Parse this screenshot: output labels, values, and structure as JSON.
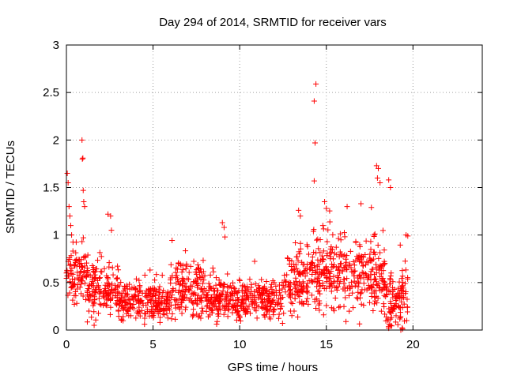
{
  "chart_data": {
    "type": "scatter",
    "title": "Day 294 of 2014, SRMTID for receiver vars",
    "xlabel": "GPS time / hours",
    "ylabel": "SRMTID / TECUs",
    "xlim": [
      0,
      24
    ],
    "ylim": [
      0,
      3
    ],
    "xticks": [
      0,
      5,
      10,
      15,
      20
    ],
    "xtick_labels": [
      "0",
      "5",
      "10",
      "15",
      "20"
    ],
    "yticks": [
      0,
      0.5,
      1,
      1.5,
      2,
      2.5,
      3
    ],
    "ytick_labels": [
      "0",
      "0.5",
      "1",
      "1.5",
      "2",
      "2.5",
      "3"
    ],
    "grid": true,
    "marker": "+",
    "series_color": "#ff0000",
    "series": [
      {
        "name": "SRMTID",
        "segments": [
          {
            "x_start": 0.0,
            "x_end": 0.5,
            "base": 0.55,
            "spread": 0.22
          },
          {
            "x_start": 0.5,
            "x_end": 1.2,
            "base": 0.62,
            "spread": 0.22
          },
          {
            "x_start": 1.2,
            "x_end": 3.0,
            "base": 0.42,
            "spread": 0.2
          },
          {
            "x_start": 3.0,
            "x_end": 6.0,
            "base": 0.3,
            "spread": 0.14
          },
          {
            "x_start": 6.0,
            "x_end": 8.0,
            "base": 0.42,
            "spread": 0.2
          },
          {
            "x_start": 8.0,
            "x_end": 12.5,
            "base": 0.33,
            "spread": 0.15
          },
          {
            "x_start": 12.5,
            "x_end": 14.0,
            "base": 0.55,
            "spread": 0.26
          },
          {
            "x_start": 14.0,
            "x_end": 18.4,
            "base": 0.58,
            "spread": 0.28
          },
          {
            "x_start": 18.4,
            "x_end": 19.0,
            "base": 0.28,
            "spread": 0.25
          },
          {
            "x_start": 19.0,
            "x_end": 19.7,
            "base": 0.35,
            "spread": 0.25
          }
        ],
        "points_per_hour": 80,
        "highlights": [
          {
            "x": 0.05,
            "y": 1.65
          },
          {
            "x": 0.1,
            "y": 1.55
          },
          {
            "x": 0.15,
            "y": 1.3
          },
          {
            "x": 0.2,
            "y": 1.2
          },
          {
            "x": 0.25,
            "y": 1.1
          },
          {
            "x": 0.3,
            "y": 1.0
          },
          {
            "x": 0.9,
            "y": 2.0
          },
          {
            "x": 0.92,
            "y": 1.8
          },
          {
            "x": 0.95,
            "y": 1.81
          },
          {
            "x": 0.97,
            "y": 1.47
          },
          {
            "x": 1.0,
            "y": 1.35
          },
          {
            "x": 1.05,
            "y": 1.3
          },
          {
            "x": 2.4,
            "y": 1.22
          },
          {
            "x": 2.55,
            "y": 1.2
          },
          {
            "x": 2.6,
            "y": 1.05
          },
          {
            "x": 9.0,
            "y": 1.13
          },
          {
            "x": 9.1,
            "y": 1.08
          },
          {
            "x": 9.15,
            "y": 0.98
          },
          {
            "x": 14.3,
            "y": 2.41
          },
          {
            "x": 14.4,
            "y": 2.59
          },
          {
            "x": 14.35,
            "y": 1.97
          },
          {
            "x": 14.3,
            "y": 1.57
          },
          {
            "x": 13.4,
            "y": 1.26
          },
          {
            "x": 13.5,
            "y": 1.2
          },
          {
            "x": 14.9,
            "y": 1.35
          },
          {
            "x": 15.0,
            "y": 1.28
          },
          {
            "x": 14.8,
            "y": 1.1
          },
          {
            "x": 16.2,
            "y": 1.3
          },
          {
            "x": 17.0,
            "y": 1.33
          },
          {
            "x": 17.6,
            "y": 1.29
          },
          {
            "x": 17.9,
            "y": 1.73
          },
          {
            "x": 18.0,
            "y": 1.7
          },
          {
            "x": 17.95,
            "y": 1.6
          },
          {
            "x": 18.1,
            "y": 1.55
          },
          {
            "x": 18.6,
            "y": 1.58
          },
          {
            "x": 18.7,
            "y": 1.5
          },
          {
            "x": 19.6,
            "y": 1.0
          },
          {
            "x": 19.7,
            "y": 0.99
          },
          {
            "x": 18.6,
            "y": 0.02
          },
          {
            "x": 18.7,
            "y": 0.05
          },
          {
            "x": 19.3,
            "y": 0.0
          },
          {
            "x": 19.4,
            "y": 0.01
          },
          {
            "x": 1.6,
            "y": 0.05
          },
          {
            "x": 5.4,
            "y": 0.08
          }
        ]
      }
    ]
  }
}
